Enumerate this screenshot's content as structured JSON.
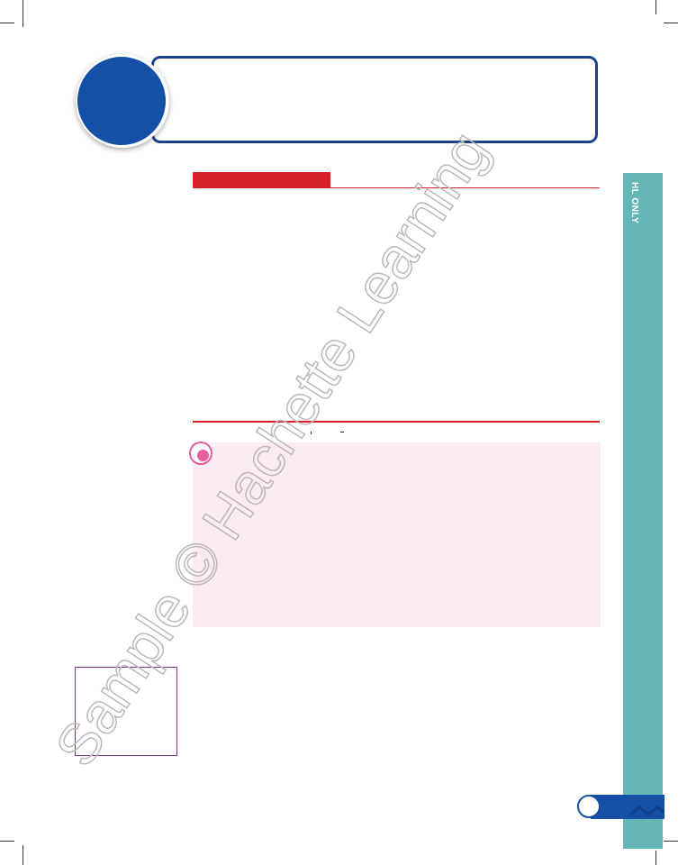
{
  "side_tab": {
    "label": "HL ONLY"
  },
  "watermark": {
    "text": "Sample © Hachette Learning"
  },
  "colors": {
    "brand_blue": "#1550a6",
    "frame_blue": "#1a3f8c",
    "accent_red": "#d71f2a",
    "tab_teal": "#65b6b6",
    "note_pink": "#e55f9e",
    "note_background": "#fcebf1",
    "box_purple": "#8a2b8e"
  },
  "icons": {
    "chapter_badge": "circle-badge",
    "note_marker": "pink-dot-marker",
    "page_marker": "page-number-circle"
  }
}
